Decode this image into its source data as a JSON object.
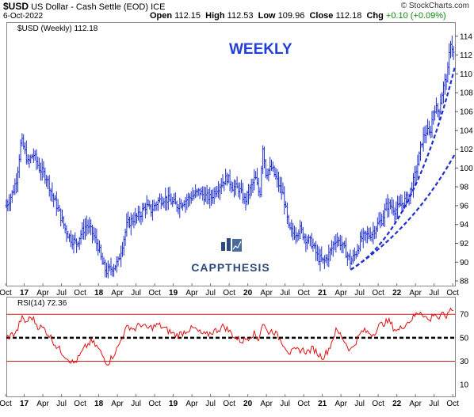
{
  "header": {
    "symbol": "$USD",
    "name": "US Dollar - Cash Settle (EOD)",
    "exchange": "ICE",
    "date": "6-Oct-2022",
    "copyright": "© StockCharts.com",
    "open_label": "Open",
    "open": "112.15",
    "high_label": "High",
    "high": "112.53",
    "low_label": "Low",
    "low": "109.96",
    "close_label": "Close",
    "close": "112.18",
    "chg_label": "Chg",
    "chg": "+0.10 (+0.09%)"
  },
  "annotation": "WEEKLY",
  "watermark": "CAPPTHESIS",
  "colors": {
    "price": "#1f2fd0",
    "trendline": "#1f2fd0",
    "annotation": "#1f3fd8",
    "rsi": "#e01010",
    "rsi_levels": "#d01818",
    "logo": "#2c4a7e"
  },
  "chart_data": [
    {
      "type": "ohlc",
      "legend": "$USD (Weekly) 112.18",
      "ylim": [
        87.5,
        115.5
      ],
      "yticks": [
        88,
        90,
        92,
        94,
        96,
        98,
        100,
        102,
        104,
        106,
        108,
        110,
        112,
        114
      ],
      "xlim": [
        2016.76,
        2022.78
      ],
      "xticks": [
        {
          "t": 2016.75,
          "label": "Oct"
        },
        {
          "t": 2017.0,
          "label": "17"
        },
        {
          "t": 2017.25,
          "label": "Apr"
        },
        {
          "t": 2017.5,
          "label": "Jul"
        },
        {
          "t": 2017.75,
          "label": "Oct"
        },
        {
          "t": 2018.0,
          "label": "18"
        },
        {
          "t": 2018.25,
          "label": "Apr"
        },
        {
          "t": 2018.5,
          "label": "Jul"
        },
        {
          "t": 2018.75,
          "label": "Oct"
        },
        {
          "t": 2019.0,
          "label": "19"
        },
        {
          "t": 2019.25,
          "label": "Apr"
        },
        {
          "t": 2019.5,
          "label": "Jul"
        },
        {
          "t": 2019.75,
          "label": "Oct"
        },
        {
          "t": 2020.0,
          "label": "20"
        },
        {
          "t": 2020.25,
          "label": "Apr"
        },
        {
          "t": 2020.5,
          "label": "Jul"
        },
        {
          "t": 2020.75,
          "label": "Oct"
        },
        {
          "t": 2021.0,
          "label": "21"
        },
        {
          "t": 2021.25,
          "label": "Apr"
        },
        {
          "t": 2021.5,
          "label": "Jul"
        },
        {
          "t": 2021.75,
          "label": "Oct"
        },
        {
          "t": 2022.0,
          "label": "22"
        },
        {
          "t": 2022.25,
          "label": "Apr"
        },
        {
          "t": 2022.5,
          "label": "Jul"
        },
        {
          "t": 2022.75,
          "label": "Oct"
        }
      ],
      "close_path": [
        [
          2016.76,
          96.0
        ],
        [
          2016.85,
          97.5
        ],
        [
          2016.9,
          99.0
        ],
        [
          2016.96,
          103.0
        ],
        [
          2017.0,
          102.0
        ],
        [
          2017.05,
          100.5
        ],
        [
          2017.12,
          101.5
        ],
        [
          2017.2,
          100.0
        ],
        [
          2017.3,
          99.0
        ],
        [
          2017.38,
          97.0
        ],
        [
          2017.46,
          95.5
        ],
        [
          2017.55,
          93.5
        ],
        [
          2017.62,
          92.5
        ],
        [
          2017.7,
          92.0
        ],
        [
          2017.76,
          93.0
        ],
        [
          2017.84,
          94.0
        ],
        [
          2017.92,
          93.0
        ],
        [
          2018.0,
          91.5
        ],
        [
          2018.04,
          90.0
        ],
        [
          2018.1,
          89.0
        ],
        [
          2018.2,
          89.5
        ],
        [
          2018.26,
          90.0
        ],
        [
          2018.32,
          92.0
        ],
        [
          2018.38,
          94.0
        ],
        [
          2018.45,
          94.5
        ],
        [
          2018.55,
          95.0
        ],
        [
          2018.63,
          96.0
        ],
        [
          2018.7,
          95.5
        ],
        [
          2018.8,
          96.5
        ],
        [
          2018.88,
          96.8
        ],
        [
          2018.96,
          96.5
        ],
        [
          2019.05,
          96.0
        ],
        [
          2019.15,
          96.5
        ],
        [
          2019.25,
          97.0
        ],
        [
          2019.35,
          97.5
        ],
        [
          2019.42,
          97.0
        ],
        [
          2019.5,
          96.8
        ],
        [
          2019.58,
          97.8
        ],
        [
          2019.66,
          98.5
        ],
        [
          2019.72,
          99.0
        ],
        [
          2019.8,
          98.0
        ],
        [
          2019.88,
          97.8
        ],
        [
          2019.96,
          96.5
        ],
        [
          2020.02,
          97.5
        ],
        [
          2020.1,
          99.0
        ],
        [
          2020.16,
          97.0
        ],
        [
          2020.2,
          102.5
        ],
        [
          2020.24,
          99.5
        ],
        [
          2020.32,
          100.0
        ],
        [
          2020.4,
          98.5
        ],
        [
          2020.48,
          97.0
        ],
        [
          2020.55,
          93.5
        ],
        [
          2020.62,
          93.0
        ],
        [
          2020.7,
          93.5
        ],
        [
          2020.78,
          92.5
        ],
        [
          2020.86,
          92.0
        ],
        [
          2020.94,
          90.5
        ],
        [
          2021.02,
          90.0
        ],
        [
          2021.1,
          91.0
        ],
        [
          2021.18,
          92.5
        ],
        [
          2021.25,
          92.0
        ],
        [
          2021.32,
          91.0
        ],
        [
          2021.38,
          90.0
        ],
        [
          2021.45,
          91.0
        ],
        [
          2021.52,
          92.5
        ],
        [
          2021.58,
          92.8
        ],
        [
          2021.66,
          93.0
        ],
        [
          2021.74,
          94.0
        ],
        [
          2021.8,
          94.5
        ],
        [
          2021.86,
          96.0
        ],
        [
          2021.92,
          96.0
        ],
        [
          2021.98,
          95.5
        ],
        [
          2022.04,
          96.0
        ],
        [
          2022.1,
          96.5
        ],
        [
          2022.16,
          97.0
        ],
        [
          2022.22,
          98.5
        ],
        [
          2022.28,
          100.5
        ],
        [
          2022.34,
          103.0
        ],
        [
          2022.4,
          104.0
        ],
        [
          2022.44,
          103.5
        ],
        [
          2022.5,
          106.5
        ],
        [
          2022.56,
          106.0
        ],
        [
          2022.62,
          108.5
        ],
        [
          2022.68,
          110.0
        ],
        [
          2022.72,
          113.5
        ],
        [
          2022.76,
          112.2
        ]
      ],
      "trendlines": [
        {
          "from": [
            2021.38,
            89.2
          ],
          "to": [
            2022.78,
            110.8
          ]
        },
        {
          "from": [
            2021.38,
            89.2
          ],
          "to": [
            2022.78,
            101.5
          ]
        }
      ]
    },
    {
      "type": "line",
      "legend": "RSI(14) 72.36",
      "ylim": [
        0,
        85
      ],
      "yticks": [
        10,
        30,
        50,
        70
      ],
      "levels": [
        70,
        50,
        30
      ],
      "xlim": [
        2016.76,
        2022.78
      ],
      "path": [
        [
          2016.76,
          50
        ],
        [
          2016.9,
          55
        ],
        [
          2016.96,
          67
        ],
        [
          2017.02,
          63
        ],
        [
          2017.1,
          68
        ],
        [
          2017.18,
          60
        ],
        [
          2017.26,
          58
        ],
        [
          2017.34,
          52
        ],
        [
          2017.42,
          44
        ],
        [
          2017.5,
          38
        ],
        [
          2017.58,
          33
        ],
        [
          2017.66,
          28
        ],
        [
          2017.72,
          32
        ],
        [
          2017.82,
          42
        ],
        [
          2017.9,
          47
        ],
        [
          2017.98,
          42
        ],
        [
          2018.06,
          34
        ],
        [
          2018.12,
          28
        ],
        [
          2018.18,
          34
        ],
        [
          2018.26,
          42
        ],
        [
          2018.34,
          55
        ],
        [
          2018.4,
          60
        ],
        [
          2018.48,
          57
        ],
        [
          2018.56,
          62
        ],
        [
          2018.64,
          58
        ],
        [
          2018.72,
          59
        ],
        [
          2018.8,
          61
        ],
        [
          2018.88,
          58
        ],
        [
          2018.96,
          55
        ],
        [
          2019.04,
          52
        ],
        [
          2019.12,
          54
        ],
        [
          2019.2,
          57
        ],
        [
          2019.28,
          58
        ],
        [
          2019.36,
          54
        ],
        [
          2019.44,
          52
        ],
        [
          2019.52,
          55
        ],
        [
          2019.6,
          57
        ],
        [
          2019.68,
          60
        ],
        [
          2019.76,
          55
        ],
        [
          2019.84,
          50
        ],
        [
          2019.92,
          47
        ],
        [
          2020.0,
          50
        ],
        [
          2020.08,
          54
        ],
        [
          2020.14,
          48
        ],
        [
          2020.2,
          63
        ],
        [
          2020.26,
          55
        ],
        [
          2020.34,
          56
        ],
        [
          2020.42,
          50
        ],
        [
          2020.5,
          43
        ],
        [
          2020.56,
          37
        ],
        [
          2020.64,
          39
        ],
        [
          2020.72,
          40
        ],
        [
          2020.8,
          38
        ],
        [
          2020.88,
          41
        ],
        [
          2020.96,
          35
        ],
        [
          2021.02,
          34
        ],
        [
          2021.1,
          42
        ],
        [
          2021.18,
          56
        ],
        [
          2021.24,
          53
        ],
        [
          2021.32,
          45
        ],
        [
          2021.38,
          39
        ],
        [
          2021.46,
          48
        ],
        [
          2021.54,
          56
        ],
        [
          2021.6,
          55
        ],
        [
          2021.68,
          53
        ],
        [
          2021.76,
          60
        ],
        [
          2021.84,
          63
        ],
        [
          2021.9,
          64
        ],
        [
          2021.96,
          58
        ],
        [
          2022.02,
          56
        ],
        [
          2022.08,
          60
        ],
        [
          2022.14,
          63
        ],
        [
          2022.2,
          66
        ],
        [
          2022.26,
          70
        ],
        [
          2022.32,
          73
        ],
        [
          2022.38,
          68
        ],
        [
          2022.44,
          64
        ],
        [
          2022.5,
          72
        ],
        [
          2022.56,
          66
        ],
        [
          2022.62,
          70
        ],
        [
          2022.68,
          68
        ],
        [
          2022.72,
          76
        ],
        [
          2022.76,
          72.36
        ]
      ]
    }
  ]
}
